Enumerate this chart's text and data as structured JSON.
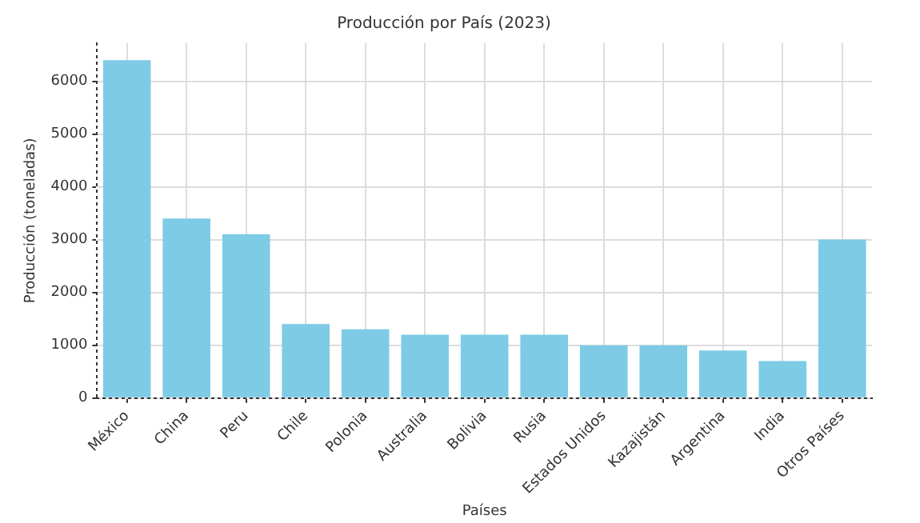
{
  "chart_data": {
    "type": "bar",
    "title": "Producción por País (2023)",
    "xlabel": "Países",
    "ylabel": "Producción (toneladas)",
    "categories": [
      "México",
      "China",
      "Peru",
      "Chile",
      "Polonia",
      "Australia",
      "Bolivia",
      "Rusia",
      "Estados Unidos",
      "Kazajistán",
      "Argentina",
      "India",
      "Otros Países"
    ],
    "values": [
      6400,
      3400,
      3100,
      1400,
      1300,
      1200,
      1200,
      1200,
      1000,
      1000,
      900,
      700,
      3000
    ],
    "color": "#7ecbe6",
    "ylim": [
      0,
      6720
    ],
    "yticks": [
      0,
      1000,
      2000,
      3000,
      4000,
      5000,
      6000
    ],
    "grid": true,
    "legend": false
  }
}
